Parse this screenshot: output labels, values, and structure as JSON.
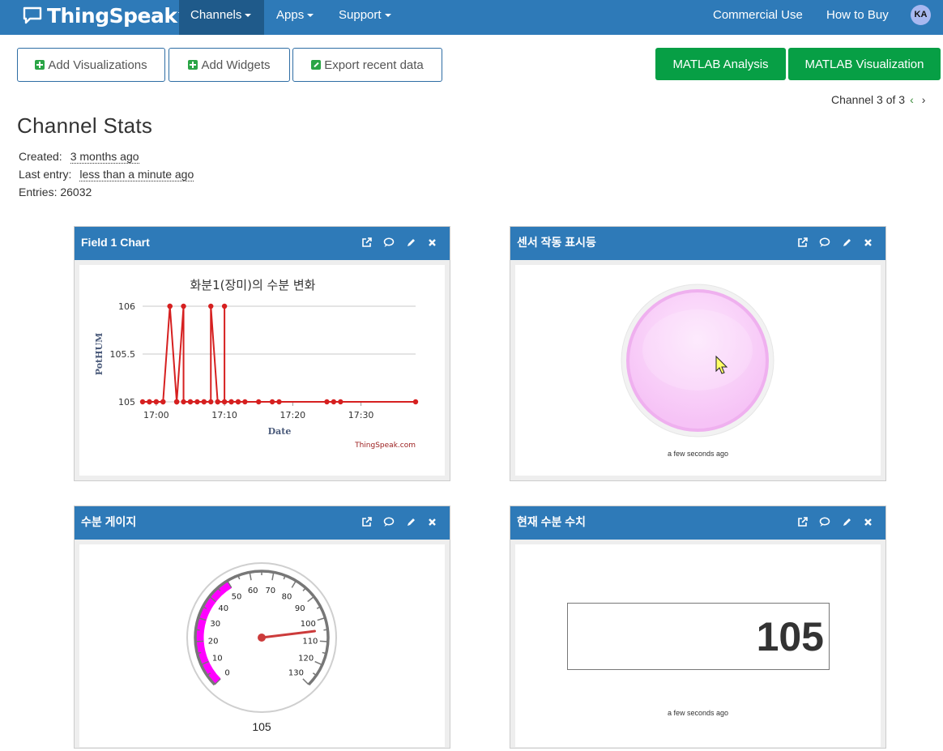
{
  "navbar": {
    "brand": "ThingSpeak",
    "brand_tm": "™",
    "items": [
      {
        "label": "Channels"
      },
      {
        "label": "Apps"
      },
      {
        "label": "Support"
      }
    ],
    "right_items": [
      {
        "label": "Commercial Use"
      },
      {
        "label": "How to Buy"
      }
    ],
    "avatar": "KA"
  },
  "toolbar": {
    "add_visualizations": "Add Visualizations",
    "add_widgets": "Add Widgets",
    "export_recent": "Export recent data",
    "matlab_analysis": "MATLAB Analysis",
    "matlab_visualization": "MATLAB Visualization"
  },
  "channel_nav": {
    "label": "Channel 3 of 3"
  },
  "stats": {
    "title": "Channel Stats",
    "created_label": "Created:",
    "created_value": "3 months ago",
    "last_entry_label": "Last entry:",
    "last_entry_value": "less than a minute ago",
    "entries": "Entries: 26032"
  },
  "panels": {
    "field1": {
      "title": "Field 1 Chart"
    },
    "indicator": {
      "title": "센서 작동 표시등",
      "stamp": "a few seconds ago",
      "color": "#f6c3f6"
    },
    "gauge": {
      "title": "수분 게이지",
      "value_label": "105"
    },
    "numeric": {
      "title": "현재 수분 수치",
      "value": "105",
      "stamp": "a few seconds ago"
    }
  },
  "chart_data": [
    {
      "type": "line",
      "title": "화분1(장미)의 수분 변화",
      "xlabel": "Date",
      "ylabel": "PotHUM",
      "credit": "ThingSpeak.com",
      "x_ticks": [
        "17:00",
        "17:10",
        "17:20",
        "17:30"
      ],
      "y_ticks": [
        "105",
        "105.5",
        "106"
      ],
      "ylim": [
        105,
        106
      ],
      "xlim": [
        "16:58",
        "17:38"
      ],
      "color": "#d62020",
      "x": [
        "16:58",
        "16:59",
        "16:59",
        "17:00",
        "17:00",
        "17:01",
        "17:01",
        "17:02",
        "17:02",
        "17:03",
        "17:03",
        "17:03",
        "17:04",
        "17:04",
        "17:05",
        "17:05",
        "17:06",
        "17:07",
        "17:07",
        "17:08",
        "17:08",
        "17:09",
        "17:09",
        "17:10",
        "17:10",
        "17:10",
        "17:11",
        "17:11",
        "17:12",
        "17:12",
        "17:13",
        "17:15",
        "17:17",
        "17:18",
        "17:25",
        "17:26",
        "17:27",
        "17:38"
      ],
      "y": [
        105,
        105,
        105,
        105,
        105,
        105,
        105,
        106,
        106,
        105,
        105,
        105,
        106,
        105,
        105,
        105,
        105,
        105,
        105,
        105,
        106,
        105,
        105,
        105,
        106,
        105,
        105,
        105,
        105,
        105,
        105,
        105,
        105,
        105,
        105,
        105,
        105,
        105
      ]
    },
    {
      "type": "gauge",
      "min": 0,
      "max": 130,
      "value": 105,
      "ticks": [
        "0",
        "10",
        "20",
        "30",
        "40",
        "50",
        "60",
        "70",
        "80",
        "90",
        "100",
        "110",
        "120",
        "130"
      ],
      "band": [
        0,
        50
      ],
      "band_color": "#ff00ff",
      "needle_color": "#cc3b3b"
    }
  ]
}
